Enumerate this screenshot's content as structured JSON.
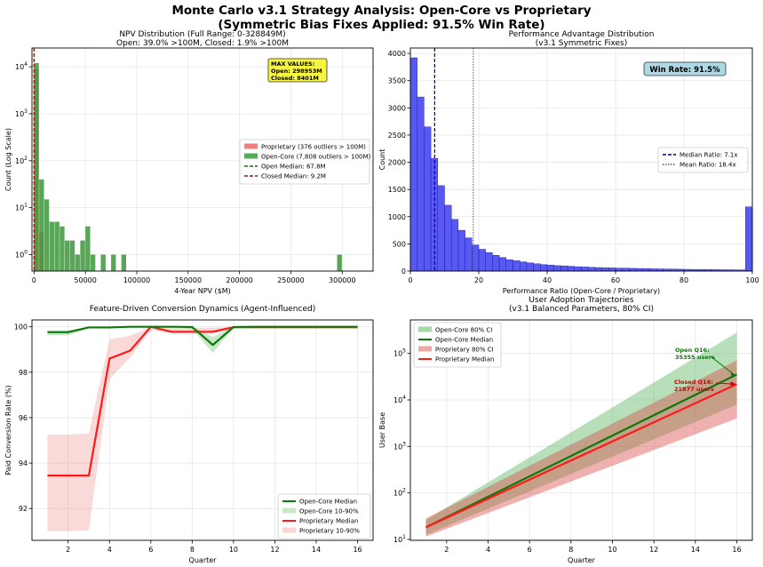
{
  "suptitle": {
    "line1": "Monte Carlo v3.1 Strategy Analysis: Open-Core vs Proprietary",
    "line2": "(Symmetric Bias Fixes Applied: 91.5% Win Rate)"
  },
  "colors": {
    "open": "#2ca02c",
    "closed": "#d62728",
    "blue": "#2222ee",
    "green": "#0a7a0a",
    "red": "#ff1a1a"
  },
  "chart_data": [
    {
      "id": "npv",
      "type": "bar",
      "title": "NPV Distribution (Full Range: 0-328849M)",
      "subtitle": "Open: 39.0% >100M, Closed: 1.9% >100M",
      "xlabel": "4-Year NPV ($M)",
      "ylabel": "Count (Log Scale)",
      "xlim": [
        -2000,
        330000
      ],
      "ylim_log10": [
        -0.35,
        4.4
      ],
      "log_y": true,
      "xticks": [
        0,
        50000,
        100000,
        150000,
        200000,
        250000,
        300000
      ],
      "xtick_labels": [
        "0",
        "50000",
        "100000",
        "150000",
        "200000",
        "250000",
        "300000"
      ],
      "yticks_log10": [
        0,
        1,
        2,
        3,
        4
      ],
      "bin_width": 5000,
      "series": [
        {
          "name": "Proprietary (376 outliers > 100M)",
          "bins": [
            [
              0,
              9200
            ],
            [
              5000,
              3
            ]
          ]
        },
        {
          "name": "Open-Core (7,808 outliers > 100M)",
          "bins": [
            [
              0,
              12000
            ],
            [
              5000,
              40
            ],
            [
              10000,
              15
            ],
            [
              15000,
              5
            ],
            [
              20000,
              5
            ],
            [
              25000,
              4
            ],
            [
              30000,
              2
            ],
            [
              35000,
              2
            ],
            [
              40000,
              1
            ],
            [
              45000,
              2
            ],
            [
              50000,
              4
            ],
            [
              55000,
              1
            ],
            [
              65000,
              1
            ],
            [
              75000,
              1
            ],
            [
              85000,
              1
            ],
            [
              295000,
              1
            ]
          ]
        }
      ],
      "lines": [
        {
          "name": "Open Median: 67.8M",
          "x": 67.8
        },
        {
          "name": "Closed Median: 9.2M",
          "x": 9.2
        }
      ],
      "annotation": [
        "MAX VALUES:",
        "Open: 298953M",
        "Closed: 8401M"
      ],
      "legend_position": "right"
    },
    {
      "id": "perf",
      "type": "bar",
      "title": "Performance Advantage Distribution",
      "subtitle": "(v3.1 Symmetric Fixes)",
      "xlabel": "Performance Ratio (Open-Core / Proprietary)",
      "ylabel": "Count",
      "xlim": [
        0,
        100
      ],
      "ylim": [
        0,
        4100
      ],
      "xticks": [
        0,
        20,
        40,
        60,
        80,
        100
      ],
      "yticks": [
        0,
        500,
        1000,
        1500,
        2000,
        2500,
        3000,
        3500,
        4000
      ],
      "bin_width": 2,
      "values": [
        3920,
        3200,
        2650,
        2070,
        1570,
        1210,
        950,
        750,
        610,
        480,
        400,
        340,
        290,
        250,
        210,
        190,
        170,
        150,
        135,
        120,
        110,
        100,
        95,
        88,
        80,
        75,
        70,
        65,
        60,
        58,
        55,
        52,
        50,
        48,
        45,
        42,
        40,
        38,
        36,
        34,
        32,
        30,
        30,
        28,
        26,
        25,
        24,
        23,
        22,
        1180
      ],
      "lines": [
        {
          "name": "Median Ratio: 7.1x",
          "x": 7.1
        },
        {
          "name": "Mean Ratio: 18.4x",
          "x": 18.4
        }
      ],
      "annotation": "Win Rate: 91.5%",
      "legend_position": "center-right"
    },
    {
      "id": "conv",
      "type": "line",
      "title": "Feature-Driven Conversion Dynamics (Agent-Influenced)",
      "xlabel": "Quarter",
      "ylabel": "Paid Conversion Rate (%)",
      "xlim": [
        0.25,
        16.75
      ],
      "ylim": [
        90.6,
        100.3
      ],
      "xticks": [
        2,
        4,
        6,
        8,
        10,
        12,
        14,
        16
      ],
      "yticks": [
        92,
        94,
        96,
        98,
        100
      ],
      "x": [
        1,
        2,
        3,
        4,
        5,
        6,
        7,
        8,
        9,
        10,
        11,
        12,
        13,
        14,
        15,
        16
      ],
      "series": [
        {
          "name": "Open-Core Median",
          "values": [
            99.76,
            99.76,
            99.97,
            99.97,
            100.0,
            100.0,
            100.0,
            99.99,
            99.2,
            99.99,
            100.0,
            100.0,
            100.0,
            100.0,
            100.0,
            100.0
          ]
        },
        {
          "name": "Open-Core 10-90%",
          "low": [
            99.62,
            99.62,
            99.95,
            99.95,
            100.0,
            100.0,
            100.0,
            99.9,
            98.85,
            99.95,
            99.98,
            99.98,
            99.98,
            99.98,
            99.98,
            99.98
          ],
          "high": [
            99.85,
            99.85,
            99.99,
            99.99,
            100.0,
            100.0,
            100.0,
            100.0,
            99.55,
            100.0,
            100.0,
            100.0,
            100.0,
            100.0,
            100.0,
            100.0
          ]
        },
        {
          "name": "Proprietary Median",
          "values": [
            93.45,
            93.45,
            93.45,
            98.6,
            98.95,
            100.0,
            99.78,
            99.78,
            99.78,
            99.98,
            99.98,
            99.98,
            99.98,
            99.98,
            99.98,
            99.98
          ]
        },
        {
          "name": "Proprietary 10-90%",
          "low": [
            91.0,
            91.0,
            91.05,
            97.7,
            98.65,
            99.85,
            99.7,
            99.7,
            99.7,
            99.92,
            99.92,
            99.92,
            99.92,
            99.92,
            99.92,
            99.92
          ],
          "high": [
            95.25,
            95.25,
            95.3,
            99.45,
            99.6,
            100.0,
            99.95,
            99.95,
            99.95,
            100.0,
            100.0,
            100.0,
            100.0,
            100.0,
            100.0,
            100.0
          ]
        }
      ],
      "legend_position": "lower-right"
    },
    {
      "id": "adopt",
      "type": "line",
      "title": "User Adoption Trajectories",
      "subtitle": "(v3.1 Balanced Parameters, 80% CI)",
      "xlabel": "Quarter",
      "ylabel": "User Base",
      "log_y": true,
      "xlim": [
        0.25,
        16.75
      ],
      "ylim_log10": [
        0.98,
        5.72
      ],
      "xticks": [
        2,
        4,
        6,
        8,
        10,
        12,
        14,
        16
      ],
      "yticks_log10": [
        1,
        2,
        3,
        4,
        5
      ],
      "x": [
        1,
        16
      ],
      "series": [
        {
          "name": "Open-Core 80% CI",
          "low_log10": [
            1.1,
            3.9
          ],
          "high_log10": [
            1.42,
            5.45
          ]
        },
        {
          "name": "Open-Core Median",
          "values_log10": [
            1.26,
            4.548
          ]
        },
        {
          "name": "Proprietary 80% CI",
          "low_log10": [
            1.06,
            3.6
          ],
          "high_log10": [
            1.45,
            4.85
          ]
        },
        {
          "name": "Proprietary Median",
          "values_log10": [
            1.26,
            4.34
          ]
        }
      ],
      "annotations": [
        {
          "text": "Open Q16:\n35355 users",
          "color": "#0a7a0a"
        },
        {
          "text": "Closed Q16:\n21877 users",
          "color": "#cc0000"
        }
      ],
      "legend_position": "upper-left"
    }
  ]
}
